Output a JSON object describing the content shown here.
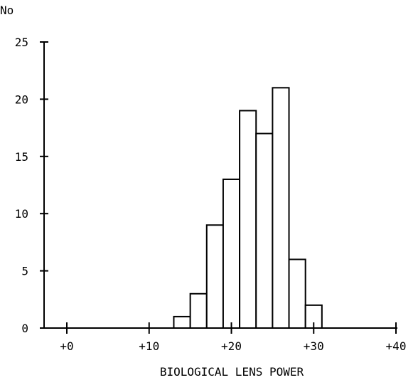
{
  "chart_data": {
    "type": "bar",
    "ylabel": "No",
    "xlabel": "BIOLOGICAL LENS POWER",
    "xlim": [
      0,
      40
    ],
    "ylim": [
      0,
      25
    ],
    "x_ticks": [
      0,
      10,
      20,
      30,
      40
    ],
    "x_tick_labels": [
      "+0",
      "+10",
      "+20",
      "+30",
      "+40"
    ],
    "y_ticks": [
      0,
      5,
      10,
      15,
      20,
      25
    ],
    "y_tick_labels": [
      "0",
      "5",
      "10",
      "15",
      "20",
      "25"
    ],
    "bin_width": 2,
    "bins": [
      {
        "start": 13,
        "end": 15,
        "value": 1
      },
      {
        "start": 15,
        "end": 17,
        "value": 3
      },
      {
        "start": 17,
        "end": 19,
        "value": 9
      },
      {
        "start": 19,
        "end": 21,
        "value": 13
      },
      {
        "start": 21,
        "end": 23,
        "value": 19
      },
      {
        "start": 23,
        "end": 25,
        "value": 17
      },
      {
        "start": 25,
        "end": 27,
        "value": 21
      },
      {
        "start": 27,
        "end": 29,
        "value": 6
      },
      {
        "start": 29,
        "end": 31,
        "value": 2
      }
    ],
    "grid": false,
    "legend": "none"
  }
}
